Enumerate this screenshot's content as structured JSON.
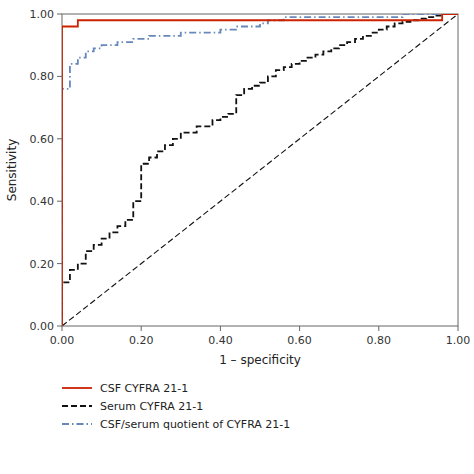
{
  "chart_data": {
    "type": "line",
    "xlabel": "1 – specificity",
    "ylabel": "Sensitivity",
    "xlim": [
      0.0,
      1.0
    ],
    "ylim": [
      0.0,
      1.0
    ],
    "xticks": [
      {
        "value": 0.0,
        "label": "0.00"
      },
      {
        "value": 0.2,
        "label": "0.20"
      },
      {
        "value": 0.4,
        "label": "0.40"
      },
      {
        "value": 0.6,
        "label": "0.60"
      },
      {
        "value": 0.8,
        "label": "0.80"
      },
      {
        "value": 1.0,
        "label": "1.00"
      }
    ],
    "yticks": [
      {
        "value": 0.0,
        "label": "0.00"
      },
      {
        "value": 0.2,
        "label": "0.20"
      },
      {
        "value": 0.4,
        "label": "0.40"
      },
      {
        "value": 0.6,
        "label": "0.60"
      },
      {
        "value": 0.8,
        "label": "0.80"
      },
      {
        "value": 1.0,
        "label": "1.00"
      }
    ],
    "legend": "bottom",
    "series": [
      {
        "color": "#111111",
        "line_style": "dashed",
        "x": [
          0.0,
          1.0
        ],
        "values": [
          0.0,
          1.0
        ]
      },
      {
        "name": "CSF CYFRA 21-1",
        "color": "#cc2200",
        "line_style": "solid",
        "x": [
          0.0,
          0.0,
          0.04,
          0.04,
          0.96,
          0.96,
          1.0
        ],
        "values": [
          0.0,
          0.96,
          0.96,
          0.98,
          0.98,
          1.0,
          1.0
        ]
      },
      {
        "name": "Serum CYFRA 21-1",
        "color": "#111111",
        "line_style": "dashed",
        "x": [
          0.0,
          0.0,
          0.02,
          0.02,
          0.04,
          0.04,
          0.06,
          0.06,
          0.08,
          0.08,
          0.1,
          0.1,
          0.12,
          0.12,
          0.14,
          0.14,
          0.16,
          0.16,
          0.18,
          0.18,
          0.2,
          0.2,
          0.22,
          0.22,
          0.24,
          0.24,
          0.26,
          0.26,
          0.28,
          0.28,
          0.3,
          0.3,
          0.34,
          0.34,
          0.38,
          0.38,
          0.4,
          0.4,
          0.42,
          0.42,
          0.44,
          0.44,
          0.46,
          0.46,
          0.48,
          0.48,
          0.5,
          0.5,
          0.52,
          0.52,
          0.54,
          0.54,
          0.56,
          0.56,
          0.58,
          0.58,
          0.6,
          0.6,
          0.62,
          0.62,
          0.64,
          0.64,
          0.66,
          0.66,
          0.68,
          0.68,
          0.7,
          0.7,
          0.72,
          0.72,
          0.74,
          0.74,
          0.76,
          0.76,
          0.78,
          0.78,
          0.8,
          0.8,
          0.82,
          0.82,
          0.84,
          0.84,
          0.86,
          0.86,
          0.88,
          0.88,
          0.9,
          0.9,
          0.92,
          0.92,
          0.94,
          0.94,
          0.96,
          0.96,
          0.98,
          0.98,
          1.0,
          1.0
        ],
        "values": [
          0.0,
          0.14,
          0.14,
          0.18,
          0.18,
          0.2,
          0.2,
          0.24,
          0.24,
          0.26,
          0.26,
          0.28,
          0.28,
          0.3,
          0.3,
          0.32,
          0.32,
          0.34,
          0.34,
          0.4,
          0.4,
          0.52,
          0.52,
          0.54,
          0.54,
          0.56,
          0.56,
          0.58,
          0.58,
          0.6,
          0.6,
          0.62,
          0.62,
          0.64,
          0.64,
          0.66,
          0.66,
          0.67,
          0.67,
          0.68,
          0.68,
          0.74,
          0.74,
          0.76,
          0.76,
          0.77,
          0.77,
          0.78,
          0.78,
          0.8,
          0.8,
          0.82,
          0.82,
          0.83,
          0.83,
          0.84,
          0.84,
          0.85,
          0.85,
          0.86,
          0.86,
          0.87,
          0.87,
          0.88,
          0.88,
          0.89,
          0.89,
          0.9,
          0.9,
          0.91,
          0.91,
          0.92,
          0.92,
          0.93,
          0.93,
          0.94,
          0.94,
          0.95,
          0.95,
          0.96,
          0.96,
          0.97,
          0.97,
          0.975,
          0.975,
          0.98,
          0.98,
          0.985,
          0.985,
          0.99,
          0.99,
          0.995,
          0.995,
          1.0,
          1.0,
          1.0,
          1.0,
          1.0
        ]
      },
      {
        "name": "CSF/serum quotient of CYFRA 21-1",
        "color": "#6688bb",
        "line_style": "dashdot",
        "x": [
          0.0,
          0.0,
          0.02,
          0.02,
          0.04,
          0.04,
          0.06,
          0.06,
          0.08,
          0.08,
          0.1,
          0.1,
          0.14,
          0.14,
          0.18,
          0.18,
          0.22,
          0.22,
          0.3,
          0.3,
          0.4,
          0.4,
          0.44,
          0.44,
          0.5,
          0.5,
          0.52,
          0.52,
          0.56,
          0.56,
          0.86,
          0.86,
          0.9,
          0.9,
          0.94,
          0.94,
          1.0,
          1.0
        ],
        "values": [
          0.0,
          0.76,
          0.76,
          0.84,
          0.84,
          0.86,
          0.86,
          0.88,
          0.88,
          0.89,
          0.89,
          0.9,
          0.9,
          0.91,
          0.91,
          0.92,
          0.92,
          0.93,
          0.93,
          0.94,
          0.94,
          0.95,
          0.95,
          0.96,
          0.96,
          0.97,
          0.97,
          0.98,
          0.98,
          0.99,
          0.99,
          1.0,
          1.0,
          1.0,
          1.0,
          1.0,
          1.0,
          1.0
        ]
      }
    ]
  }
}
